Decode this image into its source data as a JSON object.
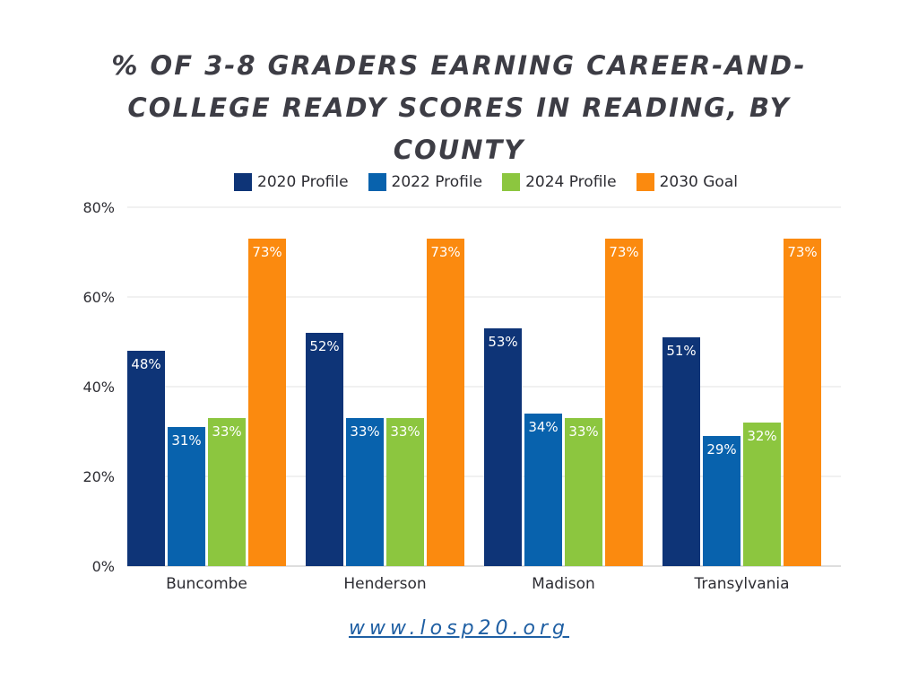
{
  "chart_data": {
    "type": "bar",
    "title": "% of 3-8 Graders Earning Career-and-College Ready Scores in Reading, by County",
    "categories": [
      "Buncombe",
      "Henderson",
      "Madison",
      "Transylvania"
    ],
    "series": [
      {
        "name": "2020 Profile",
        "color": "#0e3477",
        "values": [
          48,
          52,
          53,
          51
        ]
      },
      {
        "name": "2022 Profile",
        "color": "#0862ad",
        "values": [
          31,
          33,
          34,
          29
        ]
      },
      {
        "name": "2024 Profile",
        "color": "#8cc63f",
        "values": [
          33,
          33,
          33,
          32
        ]
      },
      {
        "name": "2030 Goal",
        "color": "#fb8a0f",
        "values": [
          73,
          73,
          73,
          73
        ]
      }
    ],
    "data_labels": [
      [
        "48%",
        "52%",
        "53%",
        "51%"
      ],
      [
        "31%",
        "33%",
        "34%",
        "29%"
      ],
      [
        "33%",
        "33%",
        "33%",
        "32%"
      ],
      [
        "73%",
        "73%",
        "73%",
        "73%"
      ]
    ],
    "yticks": [
      "0%",
      "20%",
      "40%",
      "60%",
      "80%"
    ],
    "ylim": [
      0,
      80
    ],
    "xlabel": "",
    "ylabel": "",
    "grid": true,
    "legend_position": "top-center"
  },
  "footer": {
    "url": "www.losp20.org"
  }
}
